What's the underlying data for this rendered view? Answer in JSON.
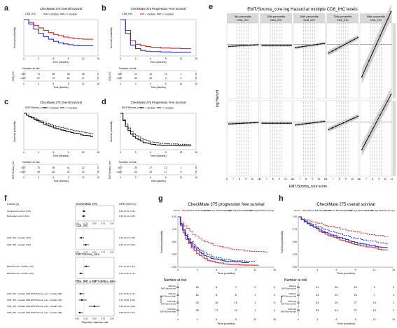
{
  "panel_letters": {
    "a": "a",
    "b": "b",
    "c": "c",
    "d": "d",
    "e": "e",
    "f": "f",
    "g": "g",
    "h": "h"
  },
  "colors": {
    "red": "#e02424",
    "blue": "#1f2fd0",
    "black": "#111111",
    "gray_band": "#c8c8c8",
    "strip": "#d9d9d9"
  },
  "panel_a": {
    "title": "CheckMate 275 Overall Survival",
    "legend": [
      "CD8_IHC",
      "> median",
      "<= median"
    ],
    "ylabel": "Survival probability",
    "xlabel": "Time (Months)",
    "ticks_x": [
      "0",
      "3",
      "6",
      "9",
      "12",
      "15"
    ],
    "risk_title": "Number at risk",
    "risk_rows": [
      [
        "107",
        "74",
        "68",
        "38",
        "18",
        "1"
      ],
      [
        "107",
        "67",
        "70",
        "64",
        "27",
        "2"
      ]
    ],
    "risk_ylabel": "CD8_IHC",
    "chart_data": {
      "type": "line",
      "x": [
        0,
        1,
        2,
        3,
        4,
        5,
        6,
        7,
        8,
        9,
        10,
        11,
        12,
        13,
        14
      ],
      "series": [
        {
          "name": "> median",
          "values": [
            1.0,
            0.92,
            0.84,
            0.77,
            0.7,
            0.64,
            0.59,
            0.56,
            0.52,
            0.5,
            0.48,
            0.47,
            0.46,
            0.46,
            0.46
          ]
        },
        {
          "name": "<= median",
          "values": [
            1.0,
            0.88,
            0.74,
            0.62,
            0.53,
            0.46,
            0.4,
            0.36,
            0.33,
            0.31,
            0.29,
            0.28,
            0.28,
            0.28,
            0.28
          ]
        }
      ]
    }
  },
  "panel_b": {
    "title": "CheckMate 275 Progression Free Survival",
    "legend": [
      "CD8_IHC",
      "> median",
      "<= median"
    ],
    "ylabel": "Survival probability",
    "xlabel": "Time (Months)",
    "ticks_x": [
      "0",
      "3",
      "6",
      "9",
      "12",
      "15"
    ],
    "risk_title": "Number at risk",
    "risk_rows": [
      [
        "107",
        "31",
        "16",
        "13",
        "1",
        "0"
      ],
      [
        "107",
        "33",
        "26",
        "2",
        "0",
        "0"
      ]
    ],
    "risk_ylabel": "CD8_IHC",
    "chart_data": {
      "type": "line",
      "x": [
        0,
        1,
        2,
        3,
        4,
        5,
        6,
        8,
        10,
        12,
        14
      ],
      "series": [
        {
          "name": "> median",
          "values": [
            1.0,
            0.7,
            0.42,
            0.32,
            0.28,
            0.26,
            0.24,
            0.22,
            0.21,
            0.2,
            0.2
          ]
        },
        {
          "name": "<= median",
          "values": [
            1.0,
            0.62,
            0.3,
            0.2,
            0.15,
            0.13,
            0.12,
            0.11,
            0.1,
            0.1,
            0.1
          ]
        }
      ]
    }
  },
  "panel_c": {
    "title": "CheckMate 275 Overall Survival",
    "legend": [
      "EMT/Stroma_core",
      "> median",
      "<= median"
    ],
    "ylabel": "Survival probability",
    "xlabel": "Time (Months)",
    "ticks_x": [
      "0",
      "3",
      "6",
      "9",
      "12",
      "15"
    ],
    "risk_title": "Number at risk",
    "risk_rows": [
      [
        "107",
        "70",
        "55",
        "41",
        "22",
        "1"
      ],
      [
        "107",
        "64",
        "60",
        "42",
        "12",
        "0"
      ]
    ],
    "risk_ylabel": "EMT/Stroma_core"
  },
  "panel_d": {
    "title": "CheckMate 275 Progression Free Survival",
    "legend": [
      "EMT/Stroma_core",
      "> median",
      "<= median"
    ],
    "ylabel": "Survival probability",
    "xlabel": "Time (Months)",
    "ticks_x": [
      "0",
      "3",
      "6",
      "9",
      "12",
      "15"
    ],
    "risk_title": "Number at risk",
    "risk_rows": [
      [
        "107",
        "25",
        "17",
        "12",
        "1",
        "0"
      ],
      [
        "107",
        "44",
        "23",
        "17",
        "0",
        "0"
      ]
    ],
    "risk_ylabel": "EMT/Stroma_core"
  },
  "panel_e": {
    "title": "EMT/Stroma_core log Hazard at multiple CD8_IHC levels",
    "columns": [
      "5th percentile\nCD8_IHC",
      "25th percentile\nCD8_IHC",
      "50th percentile\nCD8_IHC",
      "75th percentile\nCD8_IHC",
      "95th percentile\nCD8_IHC"
    ],
    "rows": [
      "Progression Free Survival",
      "Overall Survival"
    ],
    "ylabel": "log Hazard",
    "xlabel": "EMT/Stroma_core score",
    "ticks_x": [
      "6",
      "7",
      "8",
      "9",
      "10",
      "11"
    ],
    "slopes": [
      0.02,
      0.0,
      0.05,
      0.18,
      0.75
    ]
  },
  "panel_f": {
    "header_left": "Cohort (n)",
    "header_mid": "CheckMate 275",
    "header_right": "ORR (95% CI)",
    "xlabel": "Objective response rate",
    "ticks_x": [
      "0.00",
      "0.25",
      "0.50",
      "0.75",
      "1.00"
    ],
    "sections": [
      "CD8_IHC",
      "EMT/Stroma_core",
      "CD8_IHC & EMT/Stroma_core"
    ],
    "chart_data": {
      "type": "forest",
      "rows": [
        {
          "label": "Original trial cohort (270)",
          "orr": 0.2,
          "lo": 0.15,
          "hi": 0.25,
          "text": "0.20 (0.15, 0.25)"
        },
        {
          "label": "Biomarker cohort (214)",
          "orr": 0.19,
          "lo": 0.14,
          "hi": 0.25,
          "text": "0.19 (0.14, 0.25)"
        },
        {
          "label": "CD8_IHC <median (107)",
          "orr": 0.12,
          "lo": 0.07,
          "hi": 0.2,
          "text": "0.12 (0.07, 0.20)"
        },
        {
          "label": "CD8_IHC >median (107)",
          "orr": 0.25,
          "lo": 0.17,
          "hi": 0.35,
          "text": "0.25 (0.17, 0.35)"
        },
        {
          "label": "EMT/Stroma <median (107)",
          "orr": 0.27,
          "lo": 0.19,
          "hi": 0.37,
          "text": "0.27 (0.19, 0.37)"
        },
        {
          "label": "EMT/Stroma >median (107)",
          "orr": 0.11,
          "lo": 0.06,
          "hi": 0.19,
          "text": "0.11 (0.06, 0.19)"
        },
        {
          "label": "CD8_IHC <median AND EMT/Stroma_core <median (65)",
          "orr": 0.11,
          "lo": 0.05,
          "hi": 0.21,
          "text": "0.11 (0.05, 0.21)"
        },
        {
          "label": "CD8_IHC <median AND EMT/Stroma_core >median (42)",
          "orr": 0.14,
          "lo": 0.05,
          "hi": 0.29,
          "text": "0.14 (0.05, 0.29)"
        },
        {
          "label": "CD8_IHC >median AND EMT/Stroma_core <median (42)",
          "orr": 0.5,
          "lo": 0.34,
          "hi": 0.66,
          "text": "0.50 (0.34, 0.66)"
        },
        {
          "label": "CD8_IHC >median AND EMT/Stroma_core >median (65)",
          "orr": 0.08,
          "lo": 0.03,
          "hi": 0.17,
          "text": "0.08 (0.03, 0.17)"
        }
      ]
    }
  },
  "panel_g": {
    "title": "CheckMate 275 progression free survival",
    "legend": [
      "Group",
      "CD8-low EMT/Stroma-low",
      "CD8-low EMT/Stroma-high",
      "CD8-high EMT/Stroma-low",
      "CD8-high EMT/Stroma-high"
    ],
    "ylabel": "Survival probability",
    "xlabel": "Time (months)",
    "ticks_x": [
      "0",
      "3",
      "6",
      "9",
      "12",
      "15"
    ],
    "ticks_y": [
      "0.00",
      "0.25",
      "0.50",
      "0.75",
      "1.00"
    ],
    "risk_title": "Number at risk",
    "risk_groups": [
      "CD8-low\nEMT/Stroma-low",
      "CD8-low\nEMT/Stroma-high",
      "CD8-high\nEMT/Stroma-low",
      "CD8-high\nEMT/Stroma-high"
    ],
    "risk_rows": [
      [
        "65",
        "16",
        "8",
        "7",
        "0",
        "0"
      ],
      [
        "42",
        "16",
        "8",
        "6",
        "1",
        "0"
      ],
      [
        "42",
        "25",
        "16",
        "15",
        "1",
        "0"
      ],
      [
        "65",
        "28",
        "17",
        "11",
        "1",
        "0"
      ]
    ],
    "risk_ylabel": "Group"
  },
  "panel_h": {
    "title": "CheckMate 275 overall survival",
    "legend": [
      "Group",
      "CD8-low EMT/Stroma-low",
      "CD8-low EMT/Stroma-high",
      "CD8-high EMT/Stroma-low",
      "CD8-high EMT/Stroma-high"
    ],
    "ylabel": "Survival probability",
    "xlabel": "Time (months)",
    "ticks_x": [
      "0",
      "3",
      "6",
      "9",
      "12",
      "15"
    ],
    "ticks_y": [
      "0.00",
      "0.25",
      "0.50",
      "0.75",
      "1.00"
    ],
    "risk_title": "Number at risk",
    "risk_groups": [
      "CD8-low\nEMT/Stroma-low",
      "CD8-low\nEMT/Stroma-high",
      "CD8-high\nEMT/Stroma-low",
      "CD8-high\nEMT/Stroma-high"
    ],
    "risk_rows": [
      [
        "65",
        "41",
        "30",
        "24",
        "9",
        "0"
      ],
      [
        "42",
        "33",
        "19",
        "13",
        "7",
        "1"
      ],
      [
        "42",
        "34",
        "29",
        "27",
        "14",
        "1"
      ],
      [
        "65",
        "53",
        "41",
        "37",
        "13",
        "1"
      ]
    ],
    "risk_ylabel": "Group"
  }
}
